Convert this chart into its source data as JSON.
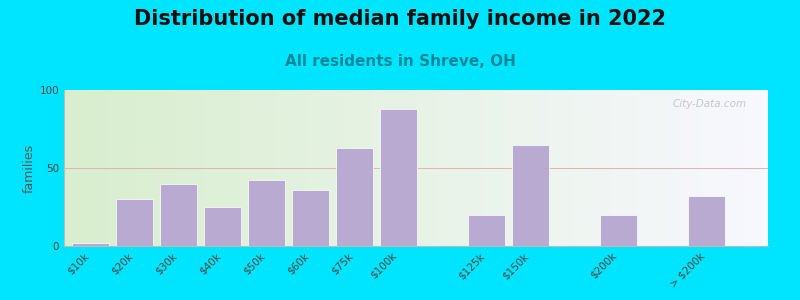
{
  "title": "Distribution of median family income in 2022",
  "subtitle": "All residents in Shreve, OH",
  "ylabel": "families",
  "categories": [
    "$10k",
    "$20k",
    "$30k",
    "$40k",
    "$50k",
    "$60k",
    "$75k",
    "$100k",
    "$125k",
    "$150k",
    "$200k",
    "> $200k"
  ],
  "values": [
    2,
    30,
    40,
    25,
    42,
    36,
    63,
    88,
    20,
    65,
    20,
    32
  ],
  "bar_color": "#b8aad0",
  "bar_edgecolor": "#ffffff",
  "background_color": "#00e5ff",
  "plot_bg_left": "#d8eece",
  "plot_bg_right": "#f8f8ff",
  "ylim": [
    0,
    100
  ],
  "yticks": [
    0,
    50,
    100
  ],
  "grid_color": "#e8b0b0",
  "title_fontsize": 15,
  "subtitle_fontsize": 11,
  "ylabel_fontsize": 9,
  "tick_fontsize": 7.5,
  "watermark": "City-Data.com",
  "bar_positions": [
    0,
    1,
    2,
    3,
    4,
    5,
    6,
    7,
    9,
    10,
    12,
    14
  ],
  "xlim": [
    -0.6,
    15.4
  ]
}
